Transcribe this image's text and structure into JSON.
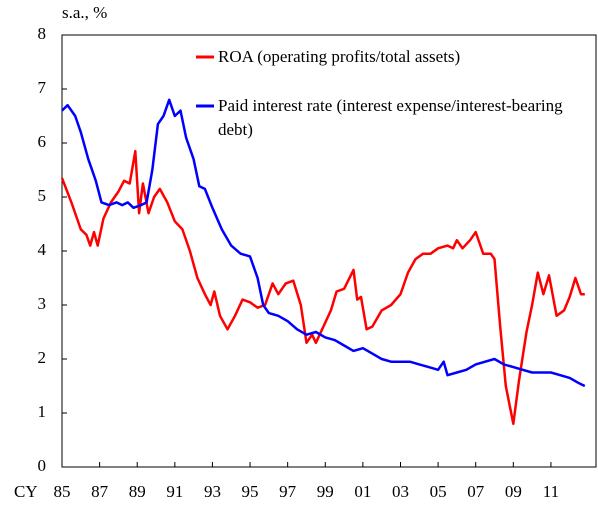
{
  "chart_data": {
    "type": "line",
    "y_label": "s.a., %",
    "x_label": "CY",
    "xlim": [
      1985,
      2013.45
    ],
    "xticks": [
      {
        "value": 1985,
        "label": "85"
      },
      {
        "value": 1987,
        "label": "87"
      },
      {
        "value": 1989,
        "label": "89"
      },
      {
        "value": 1991,
        "label": "91"
      },
      {
        "value": 1993,
        "label": "93"
      },
      {
        "value": 1995,
        "label": "95"
      },
      {
        "value": 1997,
        "label": "97"
      },
      {
        "value": 1999,
        "label": "99"
      },
      {
        "value": 2001,
        "label": "01"
      },
      {
        "value": 2003,
        "label": "03"
      },
      {
        "value": 2005,
        "label": "05"
      },
      {
        "value": 2007,
        "label": "07"
      },
      {
        "value": 2009,
        "label": "09"
      },
      {
        "value": 2011,
        "label": "11"
      }
    ],
    "ylim": [
      0,
      8
    ],
    "yticks": [
      0,
      1,
      2,
      3,
      4,
      5,
      6,
      7,
      8
    ],
    "grid": false,
    "series": [
      {
        "name": "ROA (operating profits/total assets)",
        "color": "#ff0000",
        "x": [
          1985.0,
          1985.5,
          1986.0,
          1986.3,
          1986.5,
          1986.7,
          1986.9,
          1987.2,
          1987.6,
          1988.0,
          1988.3,
          1988.6,
          1988.9,
          1989.1,
          1989.3,
          1989.6,
          1989.9,
          1990.2,
          1990.6,
          1991.0,
          1991.4,
          1991.8,
          1992.2,
          1992.6,
          1992.9,
          1993.1,
          1993.4,
          1993.8,
          1994.2,
          1994.6,
          1995.0,
          1995.4,
          1995.8,
          1996.2,
          1996.5,
          1996.9,
          1997.3,
          1997.7,
          1998.0,
          1998.3,
          1998.5,
          1998.9,
          1999.3,
          1999.6,
          2000.0,
          2000.5,
          2000.7,
          2000.9,
          2001.2,
          2001.5,
          2002.0,
          2002.5,
          2003.0,
          2003.4,
          2003.8,
          2004.2,
          2004.6,
          2005.0,
          2005.5,
          2005.8,
          2006.0,
          2006.3,
          2006.7,
          2007.0,
          2007.4,
          2007.8,
          2008.0,
          2008.3,
          2008.6,
          2009.0,
          2009.3,
          2009.7,
          2010.0,
          2010.3,
          2010.6,
          2010.9,
          2011.3,
          2011.7,
          2012.0,
          2012.3,
          2012.6,
          2012.8
        ],
        "values": [
          5.35,
          4.9,
          4.4,
          4.3,
          4.1,
          4.35,
          4.1,
          4.6,
          4.9,
          5.1,
          5.3,
          5.25,
          5.85,
          4.7,
          5.25,
          4.7,
          5.0,
          5.15,
          4.9,
          4.55,
          4.4,
          4.0,
          3.5,
          3.2,
          3.0,
          3.25,
          2.8,
          2.55,
          2.8,
          3.1,
          3.05,
          2.95,
          3.0,
          3.4,
          3.2,
          3.4,
          3.45,
          3.0,
          2.3,
          2.45,
          2.3,
          2.6,
          2.9,
          3.25,
          3.3,
          3.65,
          3.1,
          3.15,
          2.55,
          2.6,
          2.9,
          3.0,
          3.2,
          3.6,
          3.85,
          3.95,
          3.95,
          4.05,
          4.1,
          4.05,
          4.2,
          4.05,
          4.2,
          4.35,
          3.95,
          3.95,
          3.85,
          2.6,
          1.5,
          0.8,
          1.6,
          2.5,
          3.0,
          3.6,
          3.2,
          3.55,
          2.8,
          2.9,
          3.15,
          3.5,
          3.2,
          3.2
        ]
      },
      {
        "name": "Paid interest rate (interest expense/interest-bearing debt)",
        "color": "#0000ff",
        "x": [
          1985.0,
          1985.3,
          1985.7,
          1986.0,
          1986.4,
          1986.8,
          1987.1,
          1987.5,
          1987.9,
          1988.2,
          1988.5,
          1988.8,
          1989.2,
          1989.5,
          1989.8,
          1990.1,
          1990.4,
          1990.7,
          1991.0,
          1991.3,
          1991.6,
          1992.0,
          1992.3,
          1992.6,
          1993.0,
          1993.5,
          1994.0,
          1994.5,
          1995.0,
          1995.4,
          1995.7,
          1996.0,
          1996.5,
          1997.0,
          1997.5,
          1998.0,
          1998.5,
          1999.0,
          1999.5,
          2000.0,
          2000.5,
          2001.0,
          2001.5,
          2002.0,
          2002.5,
          2003.0,
          2003.5,
          2004.0,
          2004.5,
          2005.0,
          2005.3,
          2005.5,
          2006.0,
          2006.5,
          2007.0,
          2007.5,
          2008.0,
          2008.5,
          2009.0,
          2009.5,
          2010.0,
          2010.5,
          2011.0,
          2011.5,
          2012.0,
          2012.5,
          2012.8
        ],
        "values": [
          6.6,
          6.7,
          6.5,
          6.2,
          5.7,
          5.3,
          4.9,
          4.85,
          4.9,
          4.85,
          4.9,
          4.8,
          4.85,
          4.9,
          5.5,
          6.35,
          6.5,
          6.8,
          6.5,
          6.6,
          6.1,
          5.7,
          5.2,
          5.15,
          4.8,
          4.4,
          4.1,
          3.95,
          3.9,
          3.5,
          3.0,
          2.85,
          2.8,
          2.7,
          2.55,
          2.45,
          2.5,
          2.4,
          2.35,
          2.25,
          2.15,
          2.2,
          2.1,
          2.0,
          1.95,
          1.95,
          1.95,
          1.9,
          1.85,
          1.8,
          1.95,
          1.7,
          1.75,
          1.8,
          1.9,
          1.95,
          2.0,
          1.9,
          1.85,
          1.8,
          1.75,
          1.75,
          1.75,
          1.7,
          1.65,
          1.55,
          1.5
        ]
      }
    ]
  }
}
